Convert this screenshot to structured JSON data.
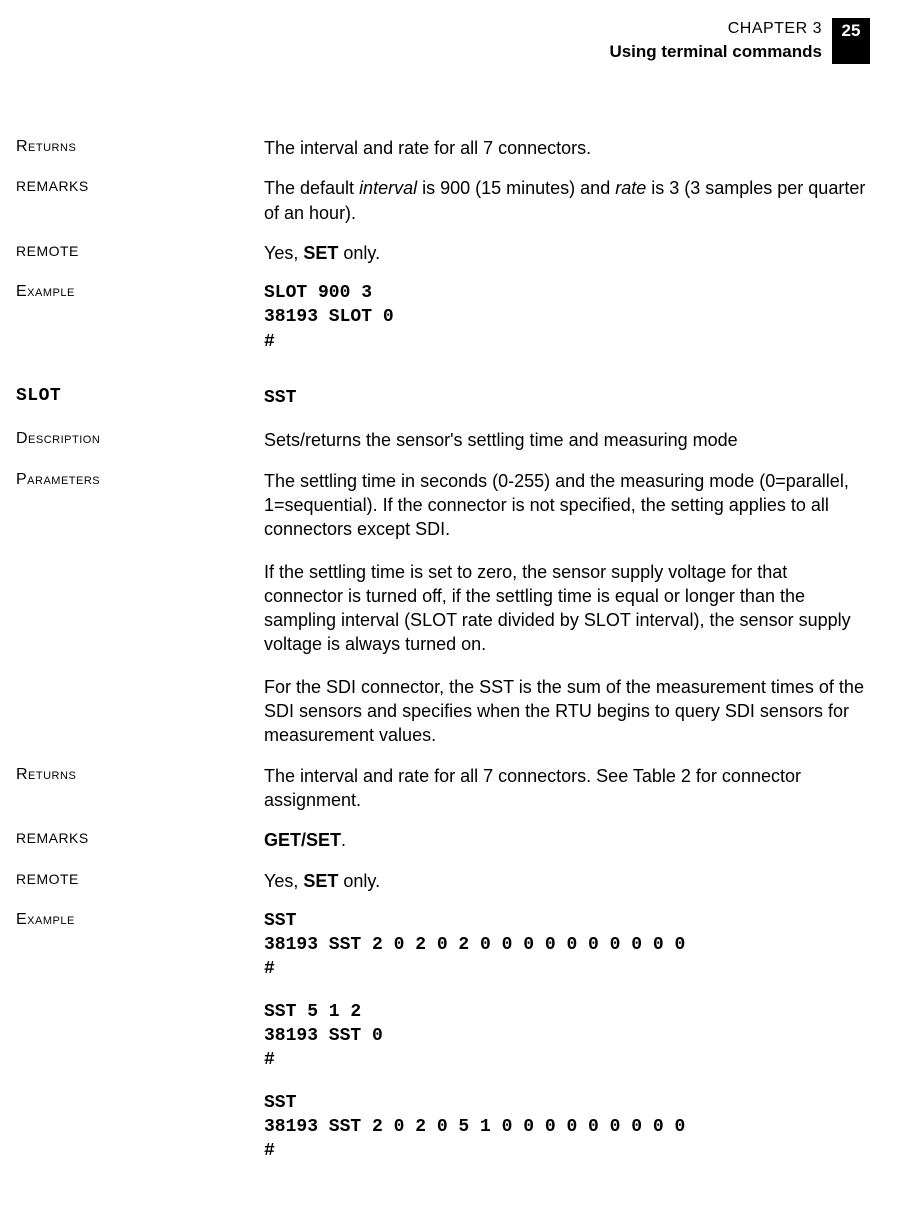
{
  "header": {
    "chapter": "CHAPTER 3",
    "subtitle": "Using terminal commands",
    "page_number": "25"
  },
  "rows": [
    {
      "label": "Returns",
      "label_style": "sc",
      "body_html": "The interval and rate for all 7 connectors."
    },
    {
      "label": "REMARKS",
      "label_style": "upper",
      "body_html": "The default <span class=\"italic\">interval</span> is 900 (15 minutes) and <span class=\"italic\">rate</span> is 3 (3 samples per quarter of an hour)."
    },
    {
      "label": "REMOTE",
      "label_style": "upper",
      "body_html": "Yes, <span class=\"bold\">SET</span> only."
    },
    {
      "label": "Example",
      "label_style": "sc",
      "body_mono": "SLOT 900 3\n38193 SLOT 0\n#"
    }
  ],
  "section2_label": "SLOT",
  "section2_body": "SST",
  "rows2": [
    {
      "label": "Description",
      "label_style": "sc",
      "body_html": "Sets/returns the sensor's settling time and measuring mode"
    },
    {
      "label": "Parameters",
      "label_style": "sc",
      "body_paras": [
        "The settling time in seconds (0-255) and the measuring mode (0=parallel, 1=sequential). If the connector is not specified, the setting applies to all connectors except SDI.",
        "If the settling time is set to zero, the sensor supply voltage for that connector is turned off, if the settling time is equal or longer than the sampling interval (SLOT rate divided by SLOT interval), the sensor supply voltage is always turned on.",
        "For the SDI connector, the SST is the sum of the measurement times of the SDI sensors and specifies when the RTU begins to query SDI sensors for measurement values."
      ]
    },
    {
      "label": "Returns",
      "label_style": "sc",
      "body_html": "The interval and rate for all 7 connectors. See Table 2 for connector assignment."
    },
    {
      "label": "REMARKS",
      "label_style": "upper",
      "body_html": "<span class=\"bold\">GET/SET</span>."
    },
    {
      "label": "REMOTE",
      "label_style": "upper",
      "body_html": "Yes, <span class=\"bold\">SET</span> only."
    },
    {
      "label": "Example",
      "label_style": "sc",
      "body_mono_blocks": [
        "SST\n38193 SST 2 0 2 0 2 0 0 0 0 0 0 0 0 0 0\n#",
        "SST 5 1 2\n38193 SST 0\n#",
        "SST\n38193 SST 2 0 2 0 5 1 0 0 0 0 0 0 0 0 0\n#"
      ]
    }
  ]
}
